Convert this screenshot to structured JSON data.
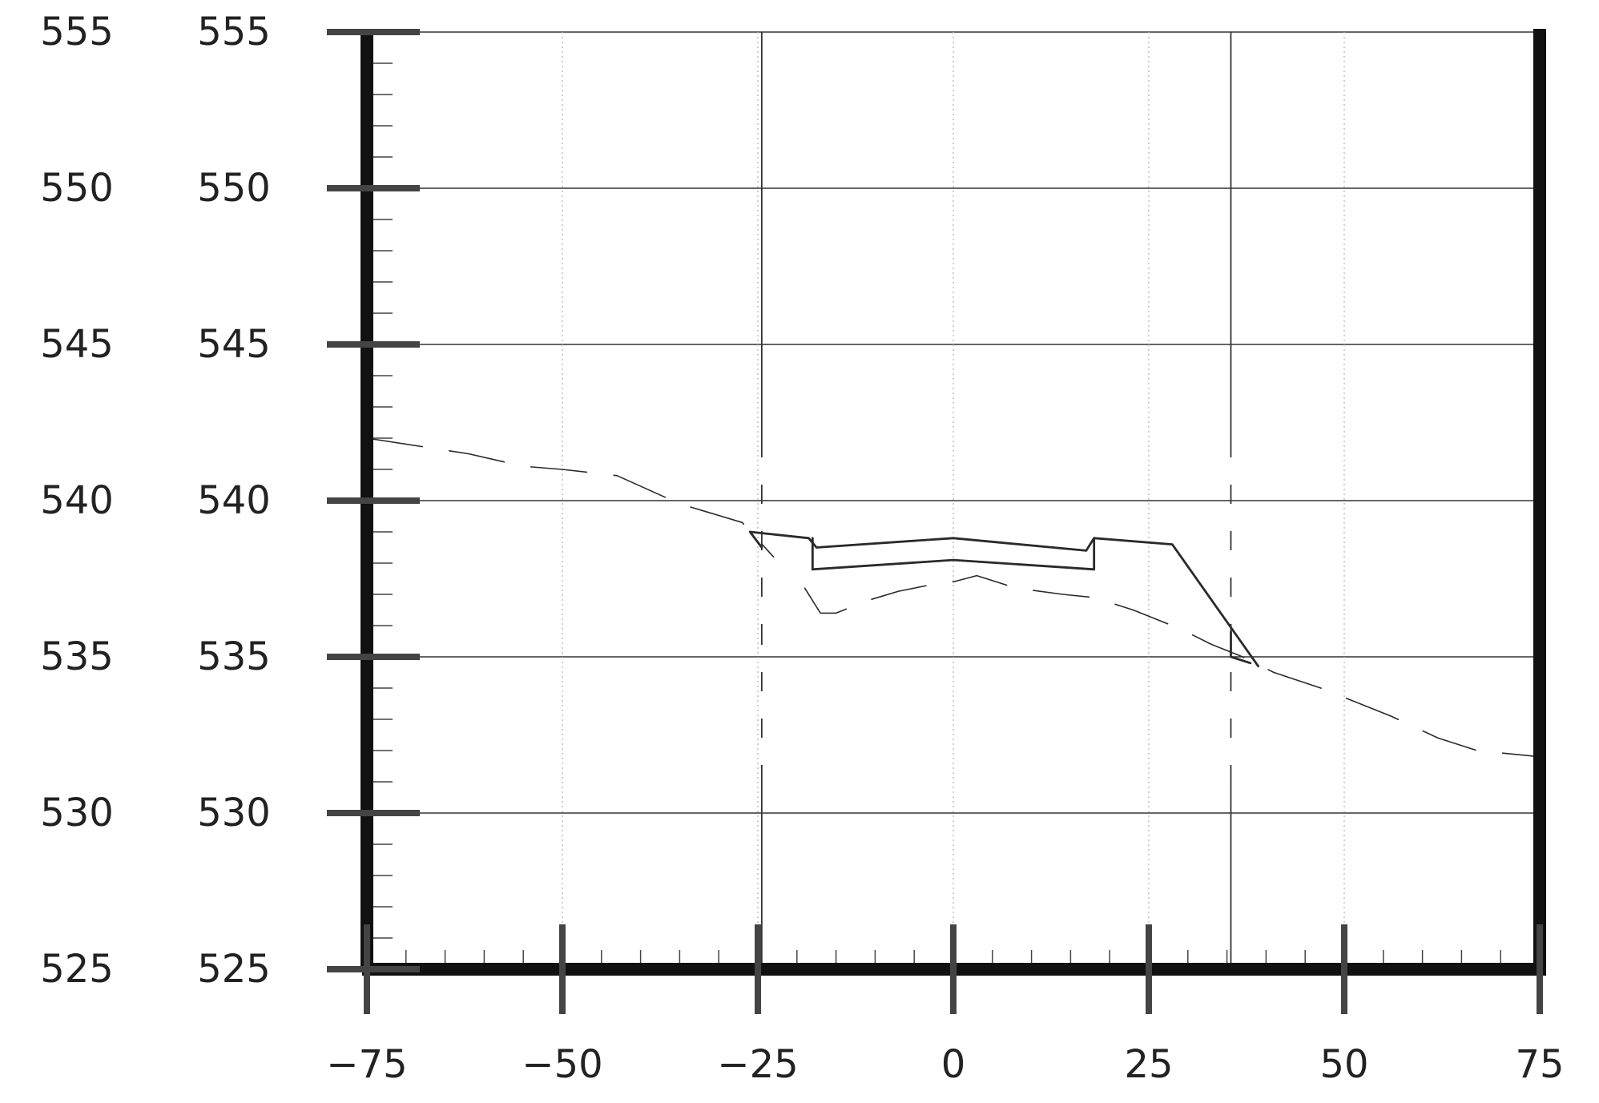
{
  "chart_data": {
    "type": "line",
    "title": "",
    "xlabel": "",
    "ylabel": "",
    "xlim": [
      -75,
      75
    ],
    "ylim": [
      525,
      555
    ],
    "x_ticks": [
      -75,
      -50,
      -25,
      0,
      25,
      50,
      75
    ],
    "x_tick_labels": [
      "−75",
      "−50",
      "−25",
      "0",
      "25",
      "50",
      "75"
    ],
    "y_ticks": [
      525,
      530,
      535,
      540,
      545,
      550,
      555
    ],
    "y_tick_labels": [
      "525",
      "530",
      "535",
      "540",
      "545",
      "550",
      "555"
    ],
    "y_tick_labels_outer": [
      "525",
      "530",
      "535",
      "540",
      "545",
      "550",
      "555"
    ],
    "grid": true,
    "vertical_reference_lines": [
      -24.5,
      35.5
    ],
    "series": [
      {
        "style": "dashed",
        "points": [
          [
            -75,
            542.0
          ],
          [
            -62,
            541.5
          ],
          [
            -55,
            541.1
          ],
          [
            -50,
            541.0
          ],
          [
            -43,
            540.8
          ],
          [
            -35,
            539.9
          ],
          [
            -27,
            539.3
          ],
          [
            -23,
            538.2
          ]
        ]
      },
      {
        "style": "dashed",
        "points": [
          [
            -19,
            537.2
          ],
          [
            -17,
            536.4
          ],
          [
            -15,
            536.4
          ],
          [
            -11,
            536.8
          ],
          [
            -7,
            537.1
          ],
          [
            -3,
            537.3
          ],
          [
            0,
            537.4
          ],
          [
            3,
            537.6
          ],
          [
            8,
            537.2
          ],
          [
            14,
            537.0
          ],
          [
            18,
            536.9
          ],
          [
            23,
            536.5
          ],
          [
            29,
            535.9
          ],
          [
            33,
            535.4
          ],
          [
            37,
            535.0
          ],
          [
            41,
            534.5
          ],
          [
            47,
            534.0
          ],
          [
            56,
            533.1
          ],
          [
            62,
            532.4
          ],
          [
            67,
            532.0
          ],
          [
            75,
            531.8
          ]
        ]
      },
      {
        "style": "solid",
        "points": [
          [
            -26,
            539.0
          ],
          [
            -18.5,
            538.8
          ],
          [
            -17.5,
            538.5
          ],
          [
            0,
            538.8
          ],
          [
            17,
            538.4
          ],
          [
            18,
            538.8
          ],
          [
            28,
            538.6
          ],
          [
            39,
            534.7
          ]
        ]
      },
      {
        "style": "solid",
        "points": [
          [
            -18,
            537.8
          ],
          [
            0,
            538.1
          ],
          [
            18,
            537.8
          ]
        ]
      },
      {
        "style": "solid",
        "points": [
          [
            -18,
            538.8
          ],
          [
            -18,
            537.8
          ]
        ]
      },
      {
        "style": "solid",
        "points": [
          [
            18,
            538.8
          ],
          [
            18,
            537.8
          ]
        ]
      },
      {
        "style": "solid",
        "points": [
          [
            -26,
            539.0
          ],
          [
            -24.5,
            538.5
          ]
        ]
      },
      {
        "style": "solid",
        "points": [
          [
            35.5,
            535.8
          ],
          [
            35.5,
            535.0
          ],
          [
            38,
            534.8
          ]
        ]
      }
    ]
  }
}
